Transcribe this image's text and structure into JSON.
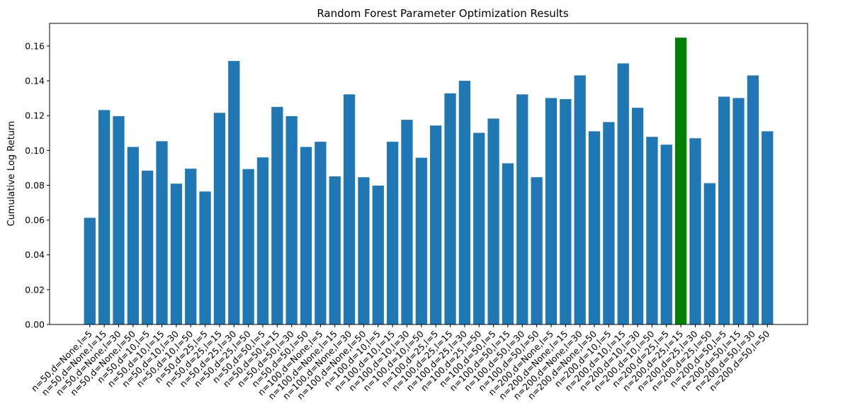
{
  "chart_data": {
    "type": "bar",
    "title": "Random Forest Parameter Optimization Results",
    "xlabel": "",
    "ylabel": "Cumulative Log Return",
    "ylim": [
      0,
      0.173
    ],
    "yticks": [
      "0.00",
      "0.02",
      "0.04",
      "0.06",
      "0.08",
      "0.10",
      "0.12",
      "0.14",
      "0.16"
    ],
    "grid": false,
    "colors": {
      "default": "#1f77b4",
      "highlight": "#008000"
    },
    "highlight_index": 41,
    "categories": [
      "n=50,d=None,l=5",
      "n=50,d=None,l=15",
      "n=50,d=None,l=30",
      "n=50,d=None,l=50",
      "n=50,d=10,l=5",
      "n=50,d=10,l=15",
      "n=50,d=10,l=30",
      "n=50,d=10,l=50",
      "n=50,d=25,l=5",
      "n=50,d=25,l=15",
      "n=50,d=25,l=30",
      "n=50,d=25,l=50",
      "n=50,d=50,l=5",
      "n=50,d=50,l=15",
      "n=50,d=50,l=30",
      "n=50,d=50,l=50",
      "n=100,d=None,l=5",
      "n=100,d=None,l=15",
      "n=100,d=None,l=30",
      "n=100,d=None,l=50",
      "n=100,d=10,l=5",
      "n=100,d=10,l=15",
      "n=100,d=10,l=30",
      "n=100,d=10,l=50",
      "n=100,d=25,l=5",
      "n=100,d=25,l=15",
      "n=100,d=25,l=30",
      "n=100,d=25,l=50",
      "n=100,d=50,l=5",
      "n=100,d=50,l=15",
      "n=100,d=50,l=30",
      "n=100,d=50,l=50",
      "n=200,d=None,l=5",
      "n=200,d=None,l=15",
      "n=200,d=None,l=30",
      "n=200,d=None,l=50",
      "n=200,d=10,l=5",
      "n=200,d=10,l=15",
      "n=200,d=10,l=30",
      "n=200,d=10,l=50",
      "n=200,d=25,l=5",
      "n=200,d=25,l=15",
      "n=200,d=25,l=30",
      "n=200,d=25,l=50",
      "n=200,d=50,l=5",
      "n=200,d=50,l=15",
      "n=200,d=50,l=30",
      "n=200,d=50,l=50"
    ],
    "values": [
      0.0613,
      0.1232,
      0.1197,
      0.102,
      0.0884,
      0.1053,
      0.0809,
      0.0895,
      0.0764,
      0.1216,
      0.1514,
      0.0893,
      0.096,
      0.125,
      0.1197,
      0.102,
      0.105,
      0.0851,
      0.1322,
      0.0846,
      0.0798,
      0.105,
      0.1176,
      0.0958,
      0.1143,
      0.1328,
      0.14,
      0.1101,
      0.1183,
      0.0926,
      0.1322,
      0.0846,
      0.1301,
      0.1295,
      0.1431,
      0.111,
      0.1163,
      0.15,
      0.1245,
      0.1078,
      0.1033,
      0.1648,
      0.107,
      0.0812,
      0.1309,
      0.1301,
      0.1431,
      0.111
    ]
  }
}
